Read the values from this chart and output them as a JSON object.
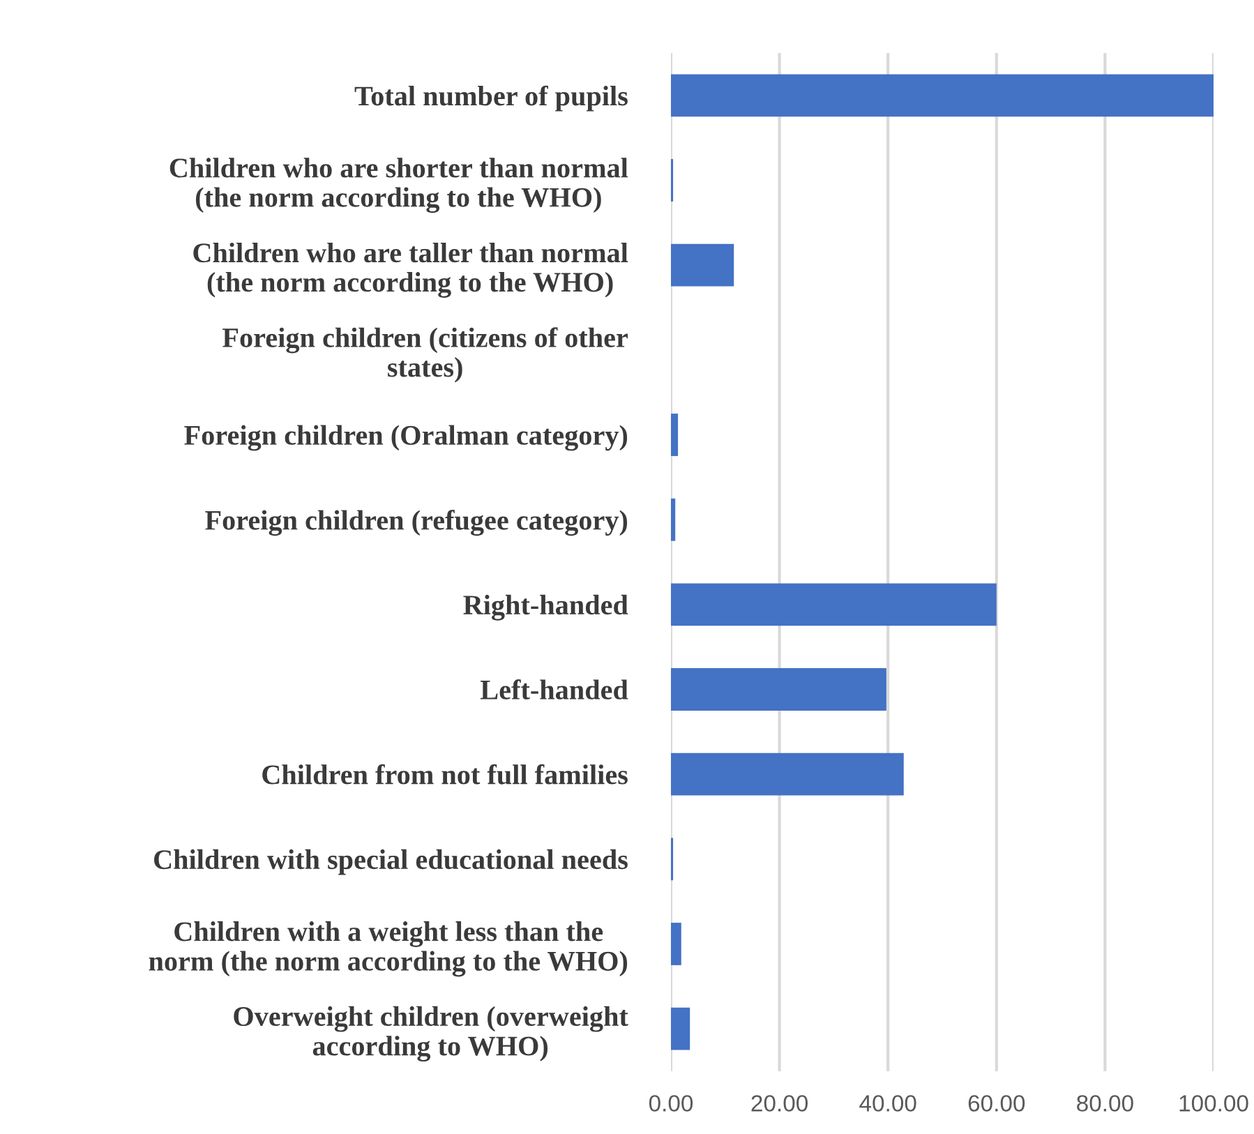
{
  "chart_data": {
    "type": "bar",
    "orientation": "horizontal",
    "categories": [
      "Total number of pupils",
      "Children who are shorter than normal\n(the norm according to the WHO)",
      "Children who are taller than normal\n(the norm according to the WHO)",
      "Foreign children (citizens of other\nstates)",
      "Foreign children (Oralman category)",
      "Foreign children (refugee category)",
      "Right-handed",
      "Left-handed",
      "Children from not full families",
      "Children with special educational needs",
      "Children with a weight less than the\nnorm (the norm according to the WHO)",
      "Overweight children (overweight\naccording to WHO)"
    ],
    "values": [
      100,
      0.4,
      11.6,
      0,
      1.3,
      0.8,
      60,
      39.7,
      42.9,
      0.4,
      1.9,
      3.5
    ],
    "color": "#4472c4",
    "xlim": [
      0,
      100
    ],
    "xticks": [
      {
        "value": 0,
        "label": "0.00"
      },
      {
        "value": 20,
        "label": "20.00"
      },
      {
        "value": 40,
        "label": "40.00"
      },
      {
        "value": 60,
        "label": "60.00"
      },
      {
        "value": 80,
        "label": "80.00"
      },
      {
        "value": 100,
        "label": "100.00"
      }
    ],
    "grid": "x"
  }
}
